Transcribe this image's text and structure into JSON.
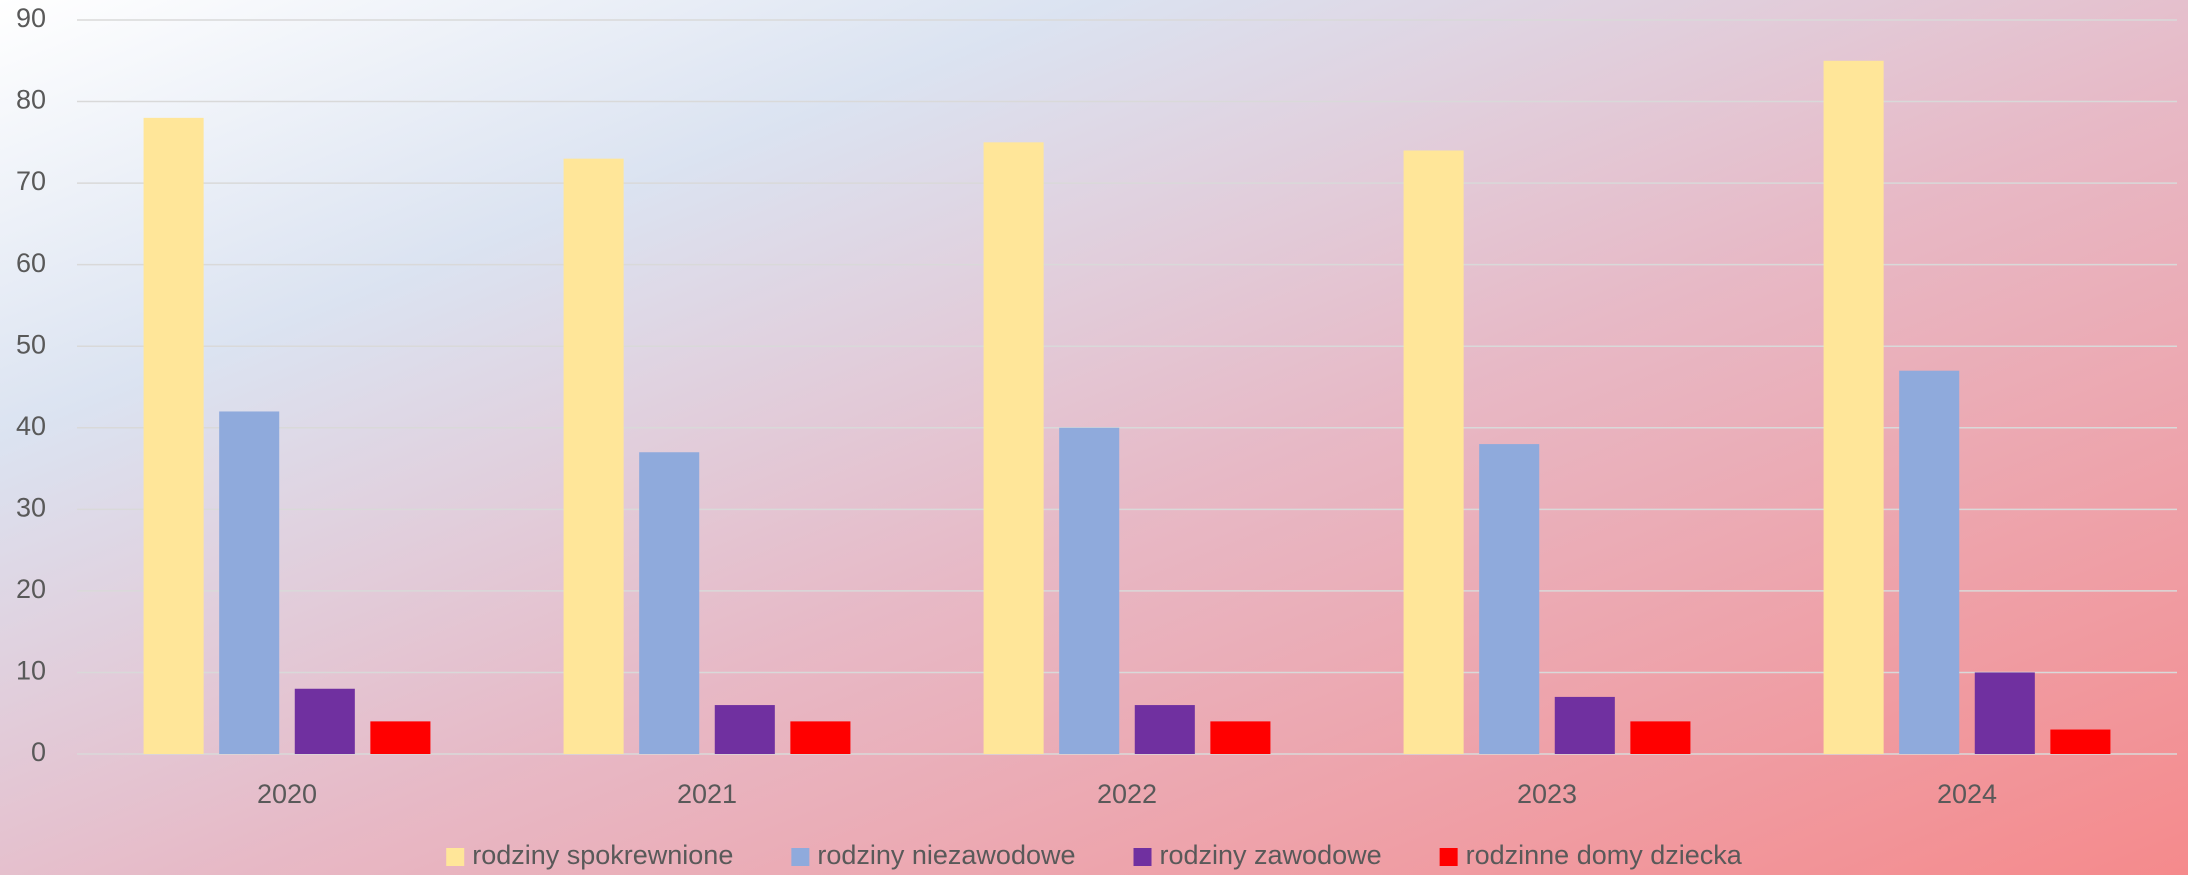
{
  "chart_data": {
    "type": "bar",
    "categories": [
      "2020",
      "2021",
      "2022",
      "2023",
      "2024"
    ],
    "series": [
      {
        "name": "rodziny spokrewnione",
        "color": "#ffe699",
        "values": [
          78,
          73,
          75,
          74,
          85
        ]
      },
      {
        "name": "rodziny niezawodowe",
        "color": "#8faadc",
        "values": [
          42,
          37,
          40,
          38,
          47
        ]
      },
      {
        "name": "rodziny zawodowe",
        "color": "#7030a0",
        "values": [
          8,
          6,
          6,
          7,
          10
        ]
      },
      {
        "name": "rodzinne domy dziecka",
        "color": "#ff0000",
        "values": [
          4,
          4,
          4,
          4,
          3
        ]
      }
    ],
    "ylim": [
      0,
      90
    ],
    "yticks": [
      0,
      10,
      20,
      30,
      40,
      50,
      60,
      70,
      80,
      90
    ],
    "grid": true,
    "legend": "bottom"
  }
}
